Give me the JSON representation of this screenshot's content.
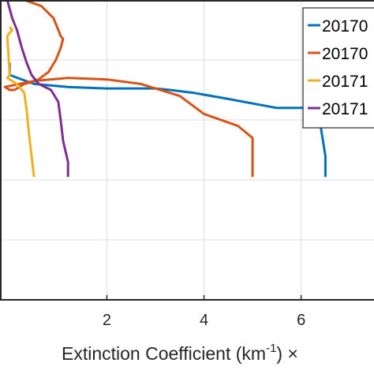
{
  "chart_data": {
    "type": "line",
    "xlabel_main": "Extinction Coefficient (km",
    "xlabel_sup": "-1",
    "xlabel_tail": ") ×",
    "xlim": [
      -0.2,
      7.5
    ],
    "ylim": [
      0,
      1
    ],
    "xticks": [
      2,
      4,
      6
    ],
    "xtick_labels": [
      "2",
      "4",
      "6"
    ],
    "grid": true,
    "legend_position": "top-right",
    "series": [
      {
        "name": "20170",
        "color": "#0072BD",
        "points": [
          [
            0,
            0.79
          ],
          [
            0,
            0.75
          ],
          [
            0.5,
            0.72
          ],
          [
            1.2,
            0.71
          ],
          [
            2.0,
            0.705
          ],
          [
            3.0,
            0.705
          ],
          [
            3.3,
            0.7
          ],
          [
            3.8,
            0.69
          ],
          [
            4.5,
            0.67
          ],
          [
            5.5,
            0.64
          ],
          [
            6.2,
            0.64
          ],
          [
            6.25,
            0.63
          ],
          [
            6.4,
            0.58
          ],
          [
            6.5,
            0.48
          ],
          [
            6.5,
            0.41
          ]
        ]
      },
      {
        "name": "20170",
        "color": "#D95319",
        "points": [
          [
            0.3,
            1.0
          ],
          [
            0.65,
            0.98
          ],
          [
            0.9,
            0.94
          ],
          [
            1.0,
            0.9
          ],
          [
            1.05,
            0.88
          ],
          [
            1.1,
            0.87
          ],
          [
            1.05,
            0.84
          ],
          [
            0.95,
            0.8
          ],
          [
            0.8,
            0.76
          ],
          [
            0.55,
            0.73
          ],
          [
            0.3,
            0.72
          ],
          [
            0.1,
            0.7
          ],
          [
            0.0,
            0.7
          ],
          [
            -0.1,
            0.71
          ],
          [
            0.5,
            0.73
          ],
          [
            1.2,
            0.74
          ],
          [
            2.0,
            0.735
          ],
          [
            2.7,
            0.72
          ],
          [
            3.5,
            0.68
          ],
          [
            4.0,
            0.62
          ],
          [
            4.7,
            0.58
          ],
          [
            5.0,
            0.54
          ],
          [
            5.0,
            0.47
          ],
          [
            5.0,
            0.41
          ]
        ]
      },
      {
        "name": "20171",
        "color": "#EDB120",
        "points": [
          [
            0.0,
            0.91
          ],
          [
            0.05,
            0.9
          ],
          [
            -0.05,
            0.88
          ],
          [
            0.0,
            0.75
          ],
          [
            -0.05,
            0.74
          ],
          [
            0.05,
            0.73
          ],
          [
            0.15,
            0.72
          ],
          [
            0.3,
            0.69
          ],
          [
            0.35,
            0.63
          ],
          [
            0.4,
            0.55
          ],
          [
            0.45,
            0.48
          ],
          [
            0.5,
            0.41
          ]
        ]
      },
      {
        "name": "20171",
        "color": "#7E2F8E",
        "points": [
          [
            -0.05,
            1.0
          ],
          [
            0.05,
            0.94
          ],
          [
            0.15,
            0.9
          ],
          [
            0.25,
            0.84
          ],
          [
            0.35,
            0.79
          ],
          [
            0.45,
            0.75
          ],
          [
            0.6,
            0.72
          ],
          [
            0.85,
            0.7
          ],
          [
            1.0,
            0.66
          ],
          [
            1.05,
            0.6
          ],
          [
            1.1,
            0.53
          ],
          [
            1.2,
            0.46
          ],
          [
            1.2,
            0.41
          ]
        ]
      }
    ]
  }
}
